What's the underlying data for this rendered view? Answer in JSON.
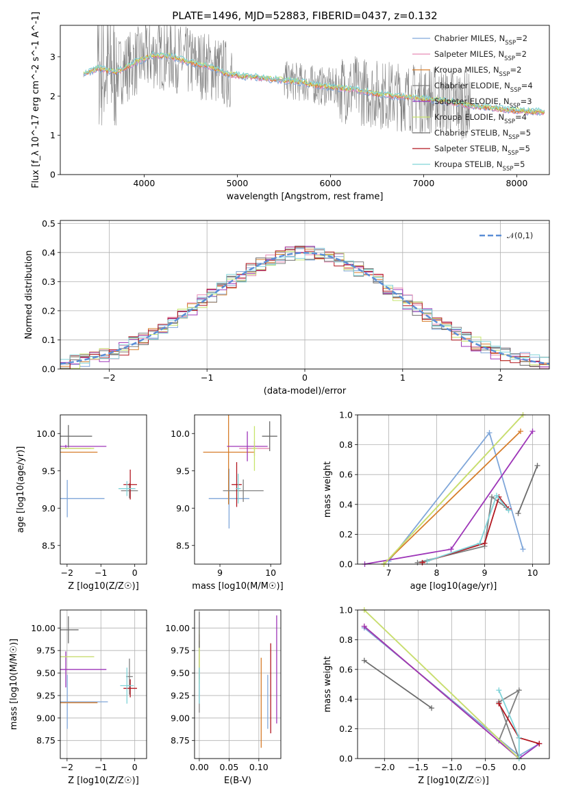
{
  "title": "PLATE=1496, MJD=52883, FIBERID=0437, z=0.132",
  "models": [
    {
      "name": "Chabrier MILES",
      "nssp": 2,
      "color": "#2c6fbb"
    },
    {
      "name": "Salpeter MILES",
      "nssp": 2,
      "color": "#ff7f0e"
    },
    {
      "name": "Kroupa MILES",
      "nssp": 2,
      "color": "#2ca02c"
    },
    {
      "name": "Chabrier ELODIE",
      "nssp": 4,
      "color": "#d62728"
    },
    {
      "name": "Salpeter ELODIE",
      "nssp": 3,
      "color": "#9467bd"
    },
    {
      "name": "Kroupa ELODIE",
      "nssp": 4,
      "color": "#8c564b"
    },
    {
      "name": "Chabrier STELIB",
      "nssp": 5,
      "color": "#e377c2"
    },
    {
      "name": "Salpeter STELIB",
      "nssp": 5,
      "color": "#7f7f7f"
    },
    {
      "name": "Kroupa STELIB",
      "nssp": 5,
      "color": "#bcbd22"
    }
  ],
  "chart_data": [
    {
      "id": "spectrum",
      "type": "line",
      "title": "PLATE=1496, MJD=52883, FIBERID=0437, z=0.132",
      "xlabel": "wavelength [Angstrom, rest frame]",
      "ylabel": "Flux [f_λ 10^-17 erg cm^-2 s^-1 A^-1]",
      "xlim": [
        3100,
        8350
      ],
      "ylim": [
        0,
        3.8
      ],
      "xticks": [
        4000,
        5000,
        6000,
        7000,
        8000
      ],
      "yticks": [
        0,
        1,
        2,
        3
      ],
      "x": [
        3350,
        3500,
        3700,
        3900,
        4100,
        4300,
        4500,
        4700,
        4900,
        5100,
        5300,
        5500,
        5700,
        5900,
        6100,
        6300,
        6500,
        6700,
        6900,
        7100,
        7300,
        7500,
        7700,
        7900,
        8100
      ],
      "series": [
        {
          "name": "data",
          "color": "#808080",
          "values": [
            2.55,
            2.7,
            2.6,
            2.85,
            3.05,
            3.0,
            2.85,
            2.75,
            2.55,
            2.5,
            2.45,
            2.4,
            2.35,
            2.25,
            2.2,
            2.15,
            2.05,
            2.0,
            1.95,
            1.9,
            1.85,
            1.75,
            1.7,
            1.65,
            1.6
          ]
        },
        {
          "name": "model",
          "color": "#6fd1d6",
          "values": [
            2.6,
            2.75,
            2.65,
            2.9,
            3.0,
            2.95,
            2.85,
            2.75,
            2.55,
            2.5,
            2.45,
            2.4,
            2.35,
            2.25,
            2.2,
            2.15,
            2.05,
            2.0,
            1.95,
            1.9,
            1.85,
            1.75,
            1.7,
            1.65,
            1.6
          ]
        }
      ],
      "legend": "upper right"
    },
    {
      "id": "residual_hist",
      "type": "line",
      "xlabel": "(data-model)/error",
      "ylabel": "Normed distribution",
      "xlim": [
        -2.5,
        2.5
      ],
      "ylim": [
        0,
        0.51
      ],
      "xticks": [
        -2,
        -1,
        0,
        1,
        2
      ],
      "yticks": [
        0.0,
        0.1,
        0.2,
        0.3,
        0.4,
        0.5
      ],
      "reference": {
        "name": "𝒩(0,1)",
        "color": "#5b8ed6"
      },
      "bin_width": 0.1
    },
    {
      "id": "age_vs_Z",
      "type": "scatter",
      "xlabel": "Z [log10(Z/Z☉)]",
      "ylabel": "age [log10(age/yr)]",
      "xlim": [
        -2.2,
        0.35
      ],
      "ylim": [
        8.25,
        10.25
      ],
      "xticks": [
        -2,
        -1,
        0
      ],
      "yticks": [
        8.5,
        9.0,
        9.5,
        10.0
      ]
    },
    {
      "id": "age_vs_mass",
      "type": "scatter",
      "xlabel": "mass [log10(M/M☉)]",
      "ylabel": "",
      "xlim": [
        8.5,
        10.2
      ],
      "ylim": [
        8.25,
        10.25
      ],
      "xticks": [
        9,
        10
      ],
      "yticks": [
        8.5,
        9.0,
        9.5,
        10.0
      ]
    },
    {
      "id": "mass_weight_vs_age",
      "type": "line",
      "xlabel": "age [log10(age/yr)]",
      "ylabel": "mass weight",
      "xlim": [
        6.35,
        10.35
      ],
      "ylim": [
        0,
        1
      ],
      "xticks": [
        7,
        8,
        9,
        10
      ],
      "yticks": [
        0.0,
        0.2,
        0.4,
        0.6,
        0.8,
        1.0
      ]
    },
    {
      "id": "mass_vs_Z",
      "type": "scatter",
      "xlabel": "Z [log10(Z/Z☉)]",
      "ylabel": "mass [log10(M/M☉)]",
      "xlim": [
        -2.2,
        0.35
      ],
      "ylim": [
        8.55,
        10.2
      ],
      "xticks": [
        -2,
        -1,
        0
      ],
      "yticks": [
        8.75,
        9.0,
        9.25,
        9.5,
        9.75,
        10.0
      ]
    },
    {
      "id": "mass_vs_ebv",
      "type": "scatter",
      "xlabel": "E(B-V)",
      "ylabel": "",
      "xlim": [
        -0.008,
        0.137
      ],
      "ylim": [
        8.55,
        10.2
      ],
      "xticks": [
        0.0,
        0.05,
        0.1
      ],
      "yticks": [
        8.75,
        9.0,
        9.25,
        9.5,
        9.75,
        10.0
      ]
    },
    {
      "id": "mass_weight_vs_Z",
      "type": "line",
      "xlabel": "Z [log10(Z/Z☉)]",
      "ylabel": "mass weight",
      "xlim": [
        -2.4,
        0.45
      ],
      "ylim": [
        0,
        1
      ],
      "xticks": [
        -2.0,
        -1.5,
        -1.0,
        -0.5,
        0.0
      ],
      "yticks": [
        0.0,
        0.2,
        0.4,
        0.6,
        0.8,
        1.0
      ]
    }
  ],
  "fits": [
    {
      "model": 0,
      "age": [
        [
          7.0,
          0.02
        ],
        [
          9.1,
          0.88
        ],
        [
          9.8,
          0.1
        ]
      ],
      "Z": [
        [
          -2.3,
          0.88
        ],
        [
          0.0,
          0.02
        ],
        [
          0.3,
          0.1
        ]
      ],
      "mass": 9.18,
      "ebv": 0.115
    },
    {
      "model": 1,
      "age": [
        [
          6.9,
          0.0
        ],
        [
          9.8,
          1.0
        ]
      ],
      "Z": [
        [
          -2.3,
          1.0
        ],
        [
          0.0,
          0.0
        ]
      ],
      "mass": 9.68,
      "ebv": 0.0
    },
    {
      "model": 2,
      "age": [
        [
          6.9,
          0.0
        ],
        [
          9.75,
          0.89
        ]
      ],
      "Z": [
        [
          -2.3,
          0.89
        ],
        [
          0.0,
          0.0
        ]
      ],
      "mass": 9.17,
      "ebv": 0.104
    },
    {
      "model": 3,
      "age": [
        [
          7.6,
          0.01
        ],
        [
          9.0,
          0.12
        ],
        [
          9.15,
          0.45
        ],
        [
          9.45,
          0.38
        ]
      ],
      "Z": [
        [
          -0.3,
          0.12
        ],
        [
          0.0,
          0.46
        ],
        [
          -0.3,
          0.38
        ],
        [
          0.0,
          0.0
        ]
      ],
      "mass": 9.46,
      "ebv": 0.0
    },
    {
      "model": 4,
      "age": [
        [
          6.5,
          0.0
        ],
        [
          8.3,
          0.1
        ],
        [
          10.0,
          0.89
        ]
      ],
      "Z": [
        [
          -2.3,
          0.89
        ],
        [
          0.0,
          0.0
        ],
        [
          0.3,
          0.1
        ]
      ],
      "mass": 9.54,
      "ebv": 0.13
    },
    {
      "model": 5,
      "age": [
        [
          6.9,
          0.0
        ],
        [
          9.8,
          1.0
        ]
      ],
      "Z": [
        [
          -2.3,
          1.0
        ],
        [
          0.0,
          0.0
        ]
      ],
      "mass": 9.68,
      "ebv": 0.0
    },
    {
      "model": 6,
      "age": [
        [
          9.7,
          0.34
        ],
        [
          10.1,
          0.66
        ]
      ],
      "Z": [
        [
          -2.3,
          0.66
        ],
        [
          -1.3,
          0.34
        ]
      ],
      "mass": 9.98,
      "ebv": 0.0
    },
    {
      "model": 7,
      "age": [
        [
          7.7,
          0.01
        ],
        [
          9.0,
          0.14
        ],
        [
          9.3,
          0.45
        ],
        [
          9.5,
          0.37
        ]
      ],
      "Z": [
        [
          -0.3,
          0.37
        ],
        [
          0.0,
          0.14
        ],
        [
          0.3,
          0.1
        ]
      ],
      "mass": 9.33,
      "ebv": 0.12
    },
    {
      "model": 8,
      "age": [
        [
          7.8,
          0.02
        ],
        [
          8.9,
          0.14
        ],
        [
          9.25,
          0.46
        ],
        [
          9.5,
          0.36
        ]
      ],
      "Z": [
        [
          -0.3,
          0.46
        ],
        [
          0.0,
          0.14
        ],
        [
          0.0,
          0.0
        ]
      ],
      "mass": 9.36,
      "ebv": 0.0
    }
  ]
}
